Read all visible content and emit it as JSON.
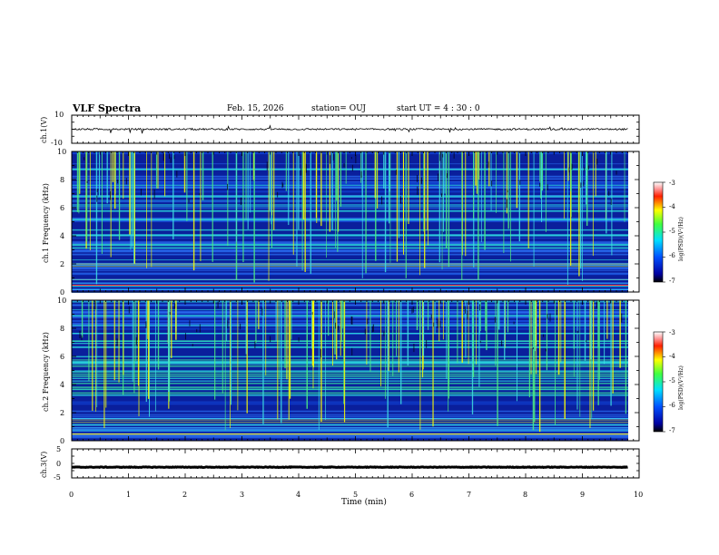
{
  "header": {
    "title": "VLF Spectra",
    "date": "Feb. 15, 2026",
    "station": "station= OUJ",
    "start": "start  UT =   4 : 30 : 0"
  },
  "colors": {
    "spec_low": "#0a1f9c",
    "spec_mid": "#2a6cf0",
    "spec_high": "#2ee0e0",
    "spec_peak": "#ffff00",
    "axis": "#000000"
  },
  "chart_data": [
    {
      "type": "line",
      "name": "ch1-waveform",
      "ylabel": "ch.1(V)",
      "yticks": [
        "10",
        "-10"
      ],
      "ylim": [
        -10,
        10
      ],
      "xlim": [
        0,
        10
      ],
      "baseline": 0,
      "noise_amplitude": 0.6
    },
    {
      "type": "heatmap",
      "name": "ch1-spectrogram",
      "ylabel": "ch.1 Frequency (kHz)",
      "yticks": [
        "10",
        "8",
        "6",
        "4",
        "2",
        "0"
      ],
      "ylim": [
        0,
        10
      ],
      "xlim": [
        0,
        9.8
      ],
      "colorbar": {
        "label": "log(PSD)(V²/Hz)",
        "ticks": [
          "-3",
          "-4",
          "-5",
          "-6",
          "-7"
        ],
        "range": [
          -7,
          -3
        ]
      }
    },
    {
      "type": "heatmap",
      "name": "ch2-spectrogram",
      "ylabel": "ch.2 Frequency (kHz)",
      "yticks": [
        "10",
        "8",
        "6",
        "4",
        "2",
        "0"
      ],
      "ylim": [
        0,
        10
      ],
      "xlim": [
        0,
        9.8
      ],
      "colorbar": {
        "label": "log(PSD)(V²/Hz)",
        "ticks": [
          "-3",
          "-4",
          "-5",
          "-6",
          "-7"
        ],
        "range": [
          -7,
          -3
        ]
      }
    },
    {
      "type": "line",
      "name": "ch3-waveform",
      "ylabel": "ch.3(V)",
      "yticks": [
        "5",
        "0",
        "-5"
      ],
      "ylim": [
        -5,
        5
      ],
      "xlim": [
        0,
        10
      ],
      "baseline": -1.3,
      "noise_amplitude": 0.1
    }
  ],
  "xaxis": {
    "label": "Time (min)",
    "ticks": [
      "0",
      "1",
      "2",
      "3",
      "4",
      "5",
      "6",
      "7",
      "8",
      "9",
      "10"
    ]
  }
}
